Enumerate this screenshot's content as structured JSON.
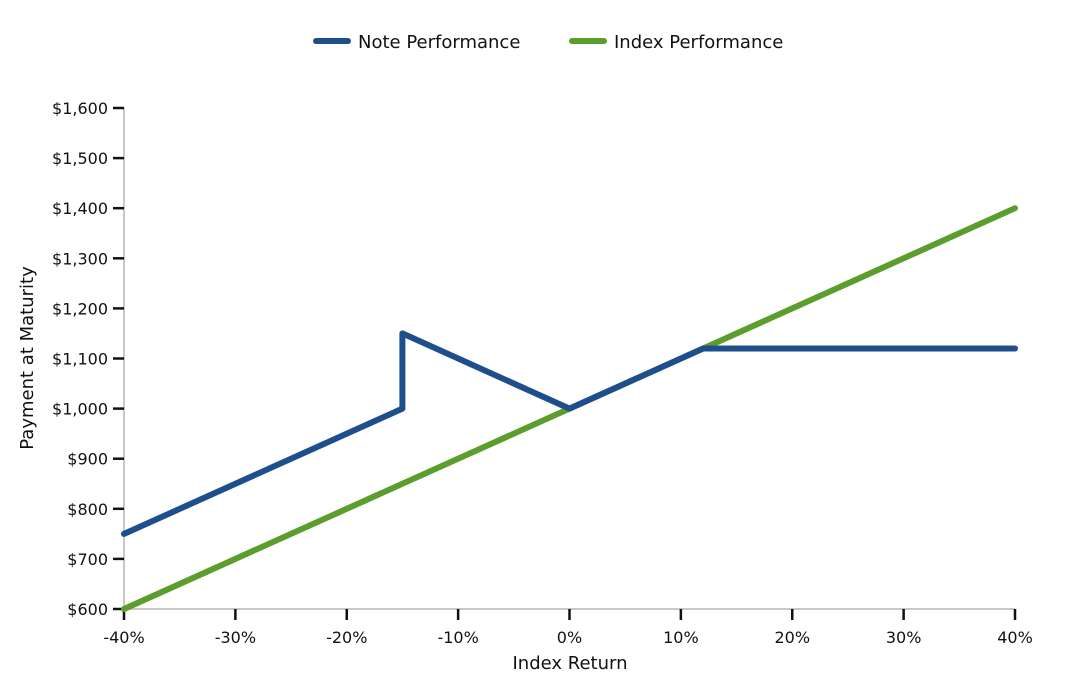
{
  "chart_data": {
    "type": "line",
    "title": "",
    "xlabel": "Index Return",
    "ylabel": "Payment at Maturity",
    "xlim": [
      -40,
      40
    ],
    "ylim": [
      600,
      1600
    ],
    "x_ticks": [
      -40,
      -30,
      -20,
      -10,
      0,
      10,
      20,
      30,
      40
    ],
    "x_tick_labels": [
      "-40%",
      "-30%",
      "-20%",
      "-10%",
      "0%",
      "10%",
      "20%",
      "30%",
      "40%"
    ],
    "y_ticks": [
      600,
      700,
      800,
      900,
      1000,
      1100,
      1200,
      1300,
      1400,
      1500,
      1600
    ],
    "y_tick_labels": [
      "$600",
      "$700",
      "$800",
      "$900",
      "$1,000",
      "$1,100",
      "$1,200",
      "$1,300",
      "$1,400",
      "$1,500",
      "$1,600"
    ],
    "grid": false,
    "legend_position": "top-center",
    "series": [
      {
        "name": "Note Performance",
        "color": "#1f4e8c",
        "x": [
          -40,
          -15,
          -15,
          0,
          12,
          40
        ],
        "y": [
          750,
          1000,
          1150,
          1000,
          1120,
          1120
        ]
      },
      {
        "name": "Index Performance",
        "color": "#5c9e2e",
        "x": [
          -40,
          40
        ],
        "y": [
          600,
          1400
        ]
      }
    ]
  }
}
